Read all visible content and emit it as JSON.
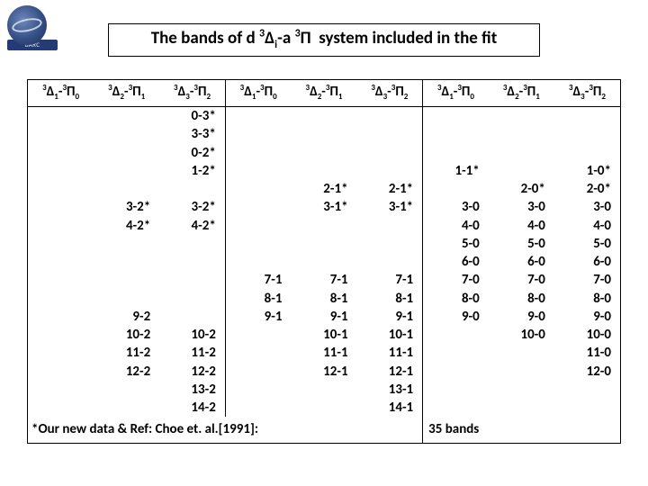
{
  "title": {
    "text": "The bands of d 3Δi-a 3Π system included in the fit"
  },
  "logo": {
    "label": "BARC"
  },
  "headers": [
    {
      "d": "1",
      "p": "0",
      "sep": false
    },
    {
      "d": "2",
      "p": "1",
      "sep": false
    },
    {
      "d": "3",
      "p": "2",
      "sep": true
    },
    {
      "d": "1",
      "p": "0",
      "sep": false
    },
    {
      "d": "2",
      "p": "1",
      "sep": false
    },
    {
      "d": "3",
      "p": "2",
      "sep": true
    },
    {
      "d": "1",
      "p": "0",
      "sep": false
    },
    {
      "d": "2",
      "p": "1",
      "sep": false
    },
    {
      "d": "3",
      "p": "2",
      "sep": false
    }
  ],
  "rows": [
    [
      "",
      "",
      "0-3*",
      "",
      "",
      "",
      "",
      "",
      ""
    ],
    [
      "",
      "",
      "3-3*",
      "",
      "",
      "",
      "",
      "",
      ""
    ],
    [
      "",
      "",
      "0-2*",
      "",
      "",
      "",
      "",
      "",
      ""
    ],
    [
      "",
      "",
      "1-2*",
      "",
      "",
      "",
      "1-1*",
      "",
      "1-0*"
    ],
    [
      "",
      "",
      "",
      "",
      "2-1*",
      "2-1*",
      "",
      "2-0*",
      "2-0*"
    ],
    [
      "",
      "3-2*",
      "3-2*",
      "",
      "3-1*",
      "3-1*",
      "3-0",
      "3-0",
      "3-0"
    ],
    [
      "",
      "4-2*",
      "4-2*",
      "",
      "",
      "",
      "4-0",
      "4-0",
      "4-0"
    ],
    [
      "",
      "",
      "",
      "",
      "",
      "",
      "5-0",
      "5-0",
      "5-0"
    ],
    [
      "",
      "",
      "",
      "",
      "",
      "",
      "6-0",
      "6-0",
      "6-0"
    ],
    [
      "",
      "",
      "",
      "7-1",
      "7-1",
      "7-1",
      "7-0",
      "7-0",
      "7-0"
    ],
    [
      "",
      "",
      "",
      "8-1",
      "8-1",
      "8-1",
      "8-0",
      "8-0",
      "8-0"
    ],
    [
      "",
      "9-2",
      "",
      "9-1",
      "9-1",
      "9-1",
      "9-0",
      "9-0",
      "9-0"
    ],
    [
      "",
      "10-2",
      "10-2",
      "",
      "10-1",
      "10-1",
      "",
      "10-0",
      "10-0"
    ],
    [
      "",
      "11-2",
      "11-2",
      "",
      "11-1",
      "11-1",
      "",
      "",
      "11-0"
    ],
    [
      "",
      "12-2",
      "12-2",
      "",
      "12-1",
      "12-1",
      "",
      "",
      "12-0"
    ],
    [
      "",
      "",
      "13-2",
      "",
      "",
      "13-1",
      "",
      "",
      ""
    ],
    [
      "",
      "",
      "14-2",
      "",
      "",
      "14-1",
      "",
      "",
      ""
    ]
  ],
  "footer": {
    "note": "*Our new data  &  Ref: Choe et. al.[1991]:",
    "bands": "35 bands"
  }
}
